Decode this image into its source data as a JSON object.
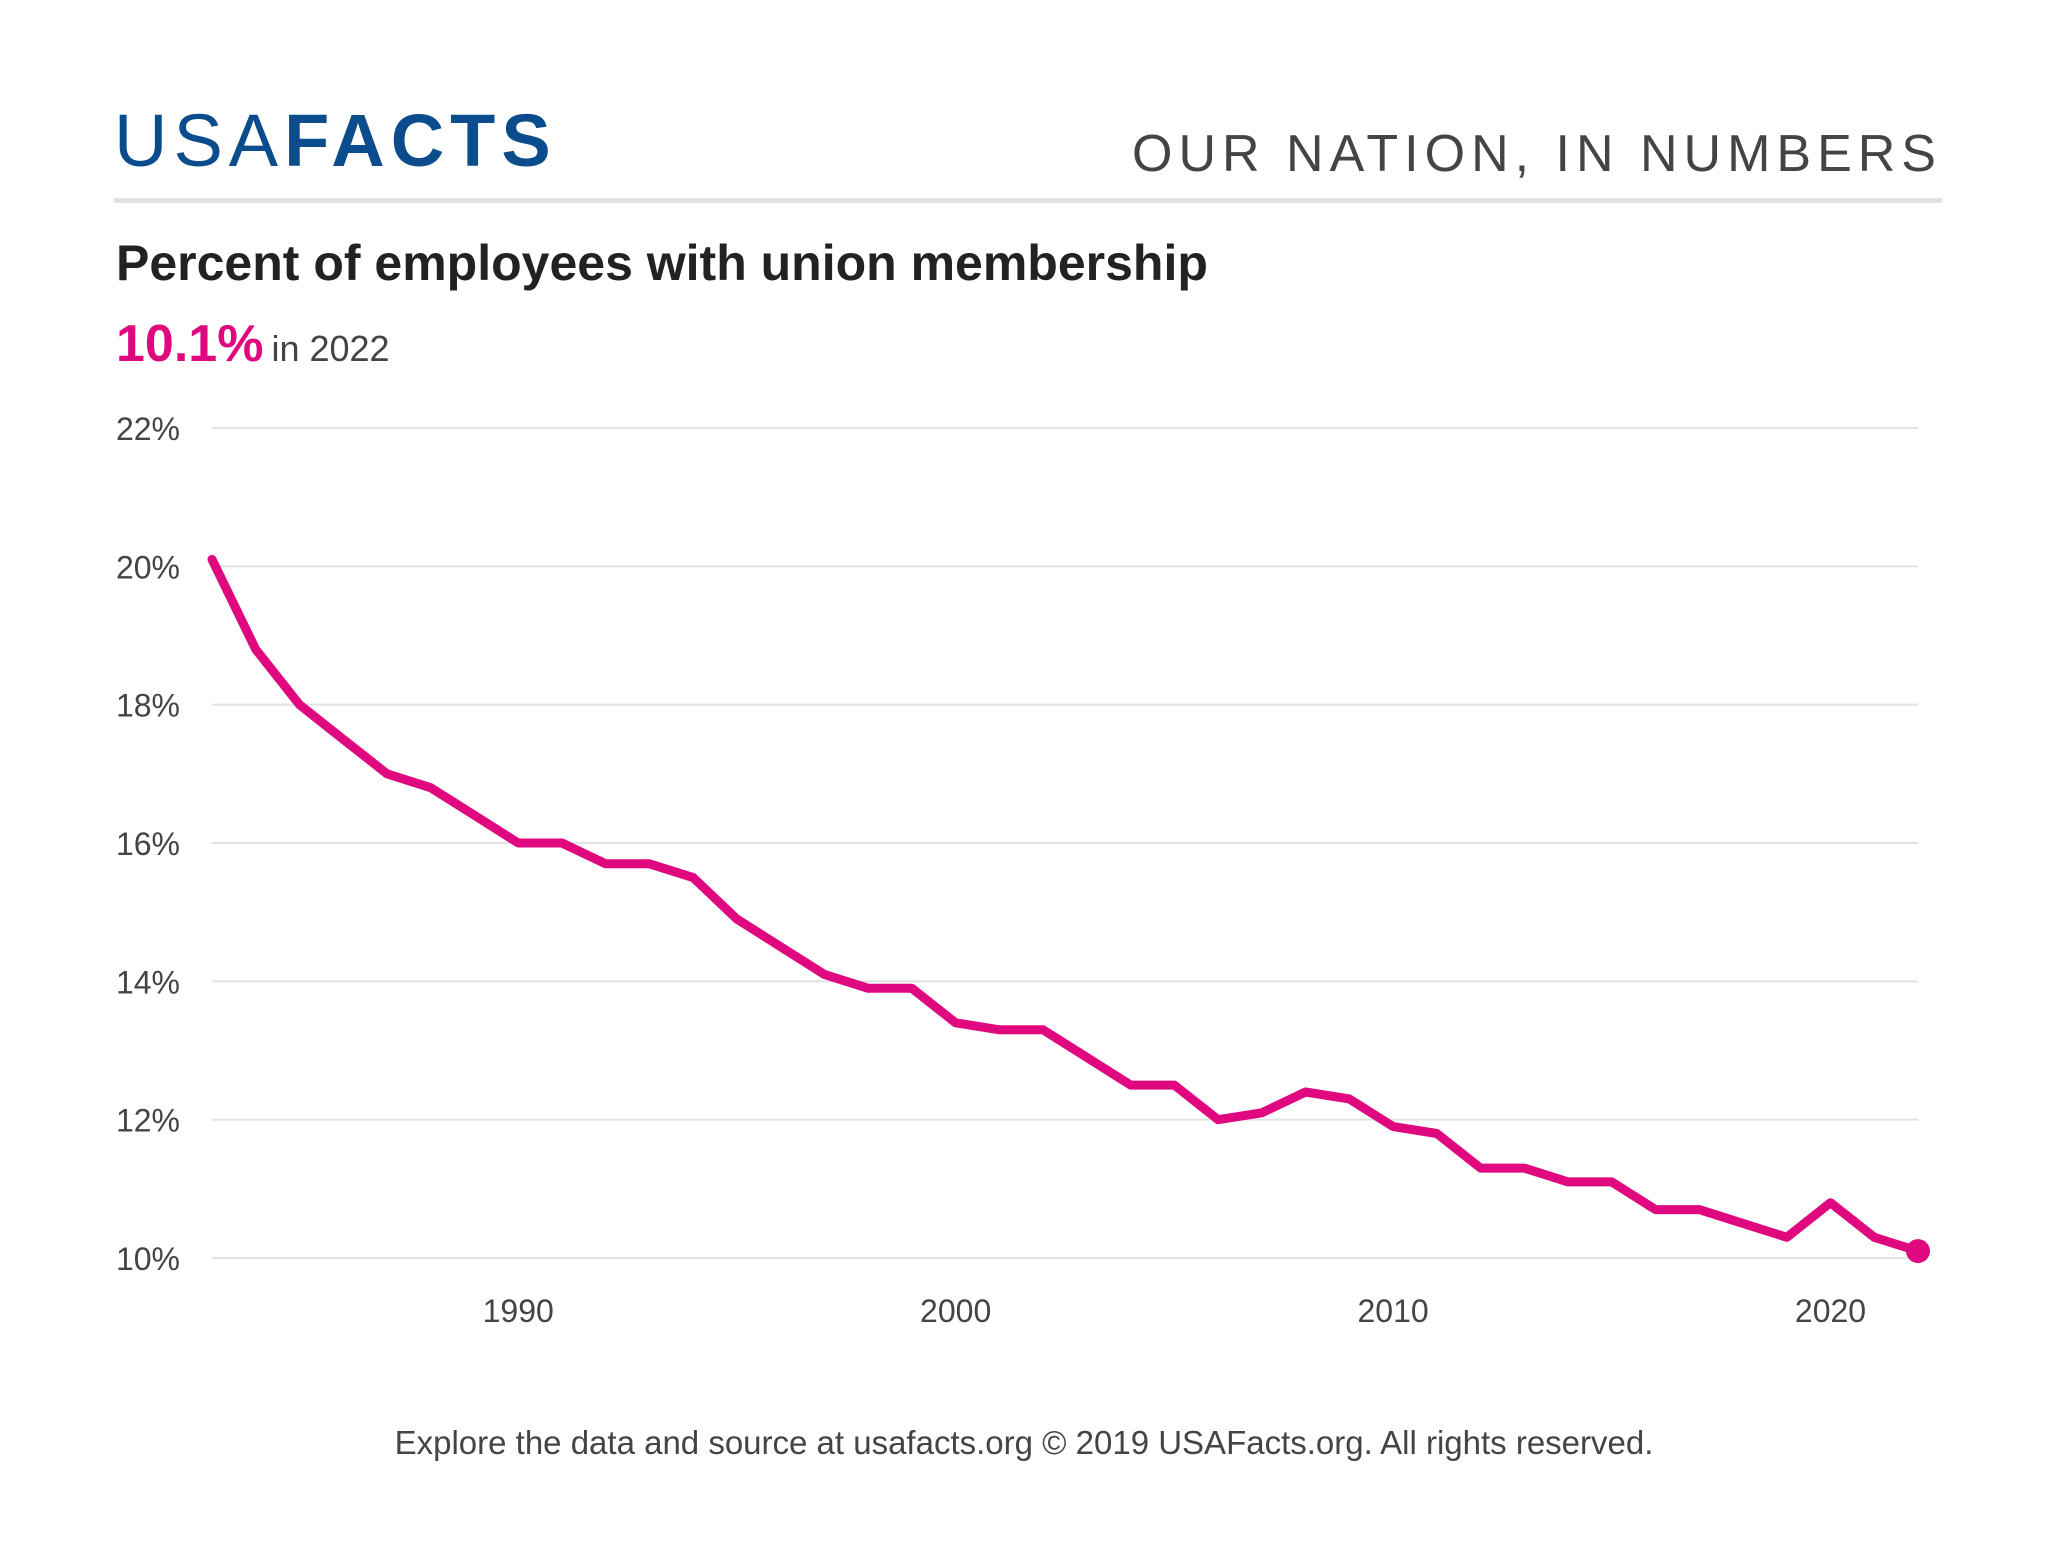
{
  "brand": {
    "logo_light": "USA",
    "logo_bold": "FACTS",
    "tagline": "OUR NATION, IN NUMBERS",
    "color": "#0b4d8c"
  },
  "headline": {
    "title": "Percent of employees with union membership",
    "value": "10.1%",
    "value_suffix": "in 2022",
    "accent": "#e0087e"
  },
  "footer": {
    "text": "Explore the data and source at usafacts.org © 2019 USAFacts.org. All rights reserved."
  },
  "chart_data": {
    "type": "line",
    "title": "Percent of employees with union membership",
    "xlabel": "",
    "ylabel": "",
    "xlim": [
      1983,
      2022
    ],
    "ylim": [
      10,
      22
    ],
    "y_ticks": [
      10,
      12,
      14,
      16,
      18,
      20,
      22
    ],
    "y_tick_labels": [
      "10%",
      "12%",
      "14%",
      "16%",
      "18%",
      "20%",
      "22%"
    ],
    "x_ticks": [
      1990,
      2000,
      2010,
      2020
    ],
    "x_tick_labels": [
      "1990",
      "2000",
      "2010",
      "2020"
    ],
    "grid": true,
    "line_color": "#e0087e",
    "x": [
      1983,
      1984,
      1985,
      1986,
      1987,
      1988,
      1989,
      1990,
      1991,
      1992,
      1993,
      1994,
      1995,
      1996,
      1997,
      1998,
      1999,
      2000,
      2001,
      2002,
      2003,
      2004,
      2005,
      2006,
      2007,
      2008,
      2009,
      2010,
      2011,
      2012,
      2013,
      2014,
      2015,
      2016,
      2017,
      2018,
      2019,
      2020,
      2021,
      2022
    ],
    "series": [
      {
        "values": [
          20.1,
          18.8,
          18.0,
          17.5,
          17.0,
          16.8,
          16.4,
          16.0,
          16.0,
          15.7,
          15.7,
          15.5,
          14.9,
          14.5,
          14.1,
          13.9,
          13.9,
          13.4,
          13.3,
          13.3,
          12.9,
          12.5,
          12.5,
          12.0,
          12.1,
          12.4,
          12.3,
          11.9,
          11.8,
          11.3,
          11.3,
          11.1,
          11.1,
          10.7,
          10.7,
          10.5,
          10.3,
          10.8,
          10.3,
          10.1
        ]
      }
    ]
  }
}
